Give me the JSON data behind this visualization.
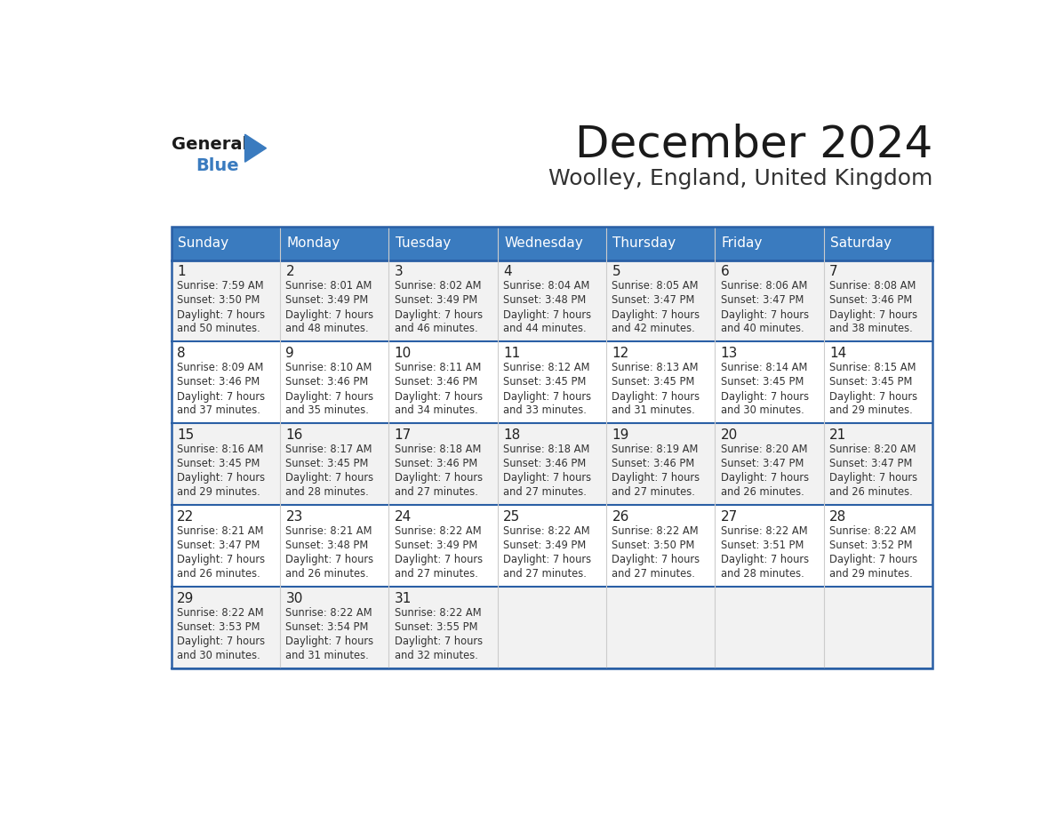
{
  "title": "December 2024",
  "subtitle": "Woolley, England, United Kingdom",
  "header_color": "#3a7bbf",
  "header_text_color": "#ffffff",
  "cell_bg_colors": [
    "#f2f2f2",
    "#ffffff"
  ],
  "border_color": "#2a5fa5",
  "text_color": "#333333",
  "days_of_week": [
    "Sunday",
    "Monday",
    "Tuesday",
    "Wednesday",
    "Thursday",
    "Friday",
    "Saturday"
  ],
  "calendar_data": [
    [
      {
        "day": 1,
        "sunrise": "7:59 AM",
        "sunset": "3:50 PM",
        "daylight": "7 hours and 50 minutes."
      },
      {
        "day": 2,
        "sunrise": "8:01 AM",
        "sunset": "3:49 PM",
        "daylight": "7 hours and 48 minutes."
      },
      {
        "day": 3,
        "sunrise": "8:02 AM",
        "sunset": "3:49 PM",
        "daylight": "7 hours and 46 minutes."
      },
      {
        "day": 4,
        "sunrise": "8:04 AM",
        "sunset": "3:48 PM",
        "daylight": "7 hours and 44 minutes."
      },
      {
        "day": 5,
        "sunrise": "8:05 AM",
        "sunset": "3:47 PM",
        "daylight": "7 hours and 42 minutes."
      },
      {
        "day": 6,
        "sunrise": "8:06 AM",
        "sunset": "3:47 PM",
        "daylight": "7 hours and 40 minutes."
      },
      {
        "day": 7,
        "sunrise": "8:08 AM",
        "sunset": "3:46 PM",
        "daylight": "7 hours and 38 minutes."
      }
    ],
    [
      {
        "day": 8,
        "sunrise": "8:09 AM",
        "sunset": "3:46 PM",
        "daylight": "7 hours and 37 minutes."
      },
      {
        "day": 9,
        "sunrise": "8:10 AM",
        "sunset": "3:46 PM",
        "daylight": "7 hours and 35 minutes."
      },
      {
        "day": 10,
        "sunrise": "8:11 AM",
        "sunset": "3:46 PM",
        "daylight": "7 hours and 34 minutes."
      },
      {
        "day": 11,
        "sunrise": "8:12 AM",
        "sunset": "3:45 PM",
        "daylight": "7 hours and 33 minutes."
      },
      {
        "day": 12,
        "sunrise": "8:13 AM",
        "sunset": "3:45 PM",
        "daylight": "7 hours and 31 minutes."
      },
      {
        "day": 13,
        "sunrise": "8:14 AM",
        "sunset": "3:45 PM",
        "daylight": "7 hours and 30 minutes."
      },
      {
        "day": 14,
        "sunrise": "8:15 AM",
        "sunset": "3:45 PM",
        "daylight": "7 hours and 29 minutes."
      }
    ],
    [
      {
        "day": 15,
        "sunrise": "8:16 AM",
        "sunset": "3:45 PM",
        "daylight": "7 hours and 29 minutes."
      },
      {
        "day": 16,
        "sunrise": "8:17 AM",
        "sunset": "3:45 PM",
        "daylight": "7 hours and 28 minutes."
      },
      {
        "day": 17,
        "sunrise": "8:18 AM",
        "sunset": "3:46 PM",
        "daylight": "7 hours and 27 minutes."
      },
      {
        "day": 18,
        "sunrise": "8:18 AM",
        "sunset": "3:46 PM",
        "daylight": "7 hours and 27 minutes."
      },
      {
        "day": 19,
        "sunrise": "8:19 AM",
        "sunset": "3:46 PM",
        "daylight": "7 hours and 27 minutes."
      },
      {
        "day": 20,
        "sunrise": "8:20 AM",
        "sunset": "3:47 PM",
        "daylight": "7 hours and 26 minutes."
      },
      {
        "day": 21,
        "sunrise": "8:20 AM",
        "sunset": "3:47 PM",
        "daylight": "7 hours and 26 minutes."
      }
    ],
    [
      {
        "day": 22,
        "sunrise": "8:21 AM",
        "sunset": "3:47 PM",
        "daylight": "7 hours and 26 minutes."
      },
      {
        "day": 23,
        "sunrise": "8:21 AM",
        "sunset": "3:48 PM",
        "daylight": "7 hours and 26 minutes."
      },
      {
        "day": 24,
        "sunrise": "8:22 AM",
        "sunset": "3:49 PM",
        "daylight": "7 hours and 27 minutes."
      },
      {
        "day": 25,
        "sunrise": "8:22 AM",
        "sunset": "3:49 PM",
        "daylight": "7 hours and 27 minutes."
      },
      {
        "day": 26,
        "sunrise": "8:22 AM",
        "sunset": "3:50 PM",
        "daylight": "7 hours and 27 minutes."
      },
      {
        "day": 27,
        "sunrise": "8:22 AM",
        "sunset": "3:51 PM",
        "daylight": "7 hours and 28 minutes."
      },
      {
        "day": 28,
        "sunrise": "8:22 AM",
        "sunset": "3:52 PM",
        "daylight": "7 hours and 29 minutes."
      }
    ],
    [
      {
        "day": 29,
        "sunrise": "8:22 AM",
        "sunset": "3:53 PM",
        "daylight": "7 hours and 30 minutes."
      },
      {
        "day": 30,
        "sunrise": "8:22 AM",
        "sunset": "3:54 PM",
        "daylight": "7 hours and 31 minutes."
      },
      {
        "day": 31,
        "sunrise": "8:22 AM",
        "sunset": "3:55 PM",
        "daylight": "7 hours and 32 minutes."
      },
      null,
      null,
      null,
      null
    ]
  ],
  "logo_text_general": "General",
  "logo_text_blue": "Blue",
  "logo_triangle_color": "#3a7bbf"
}
